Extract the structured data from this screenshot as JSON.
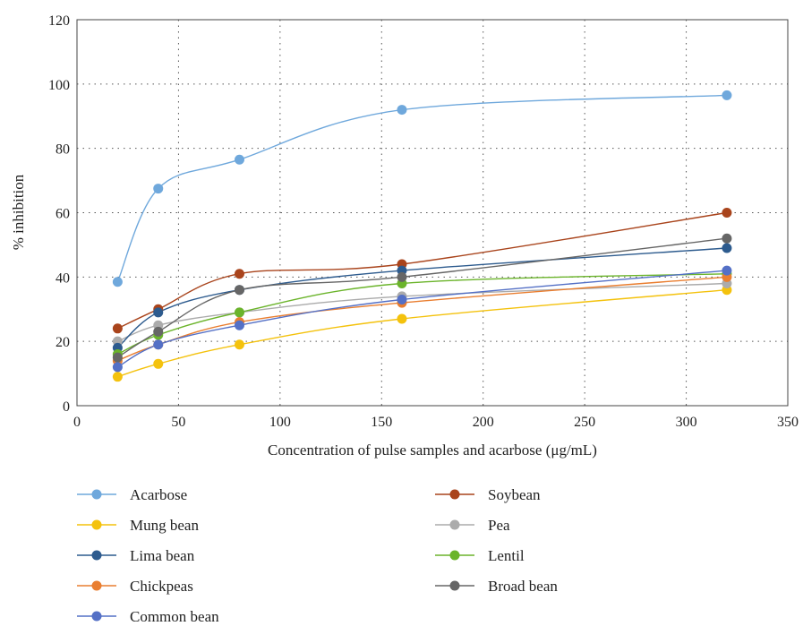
{
  "chart_data": {
    "type": "line",
    "title": "",
    "xlabel": "Concentration of pulse samples and acarbose (μg/mL)",
    "ylabel": "% inhibition",
    "xlim": [
      0,
      350
    ],
    "ylim": [
      0,
      120
    ],
    "xticks": [
      0,
      50,
      100,
      150,
      200,
      250,
      300,
      350
    ],
    "yticks": [
      0,
      20,
      40,
      60,
      80,
      100,
      120
    ],
    "grid": true,
    "legend_position": "bottom",
    "x": [
      20,
      40,
      80,
      160,
      320
    ],
    "series": [
      {
        "name": "Acarbose",
        "color": "#6FA8DC",
        "values": [
          38.5,
          67.5,
          76.5,
          92,
          96.5
        ]
      },
      {
        "name": "Soybean",
        "color": "#A9441C",
        "values": [
          24,
          30,
          41,
          44,
          60
        ]
      },
      {
        "name": "Mung bean",
        "color": "#F4C20D",
        "values": [
          9,
          13,
          19,
          27,
          36
        ]
      },
      {
        "name": "Pea",
        "color": "#ABABAB",
        "values": [
          20,
          25,
          29,
          34,
          38
        ]
      },
      {
        "name": "Lima bean",
        "color": "#2D5B8E",
        "values": [
          18,
          29,
          36,
          42,
          49
        ]
      },
      {
        "name": "Lentil",
        "color": "#6BB42B",
        "values": [
          16,
          22,
          29,
          38,
          41
        ]
      },
      {
        "name": "Chickpeas",
        "color": "#E97E30",
        "values": [
          14,
          19,
          26,
          32,
          40
        ]
      },
      {
        "name": "Broad bean",
        "color": "#666666",
        "values": [
          15,
          23,
          36,
          40,
          52
        ]
      },
      {
        "name": "Common bean",
        "color": "#5470C6",
        "values": [
          12,
          19,
          25,
          33,
          42
        ]
      }
    ]
  }
}
